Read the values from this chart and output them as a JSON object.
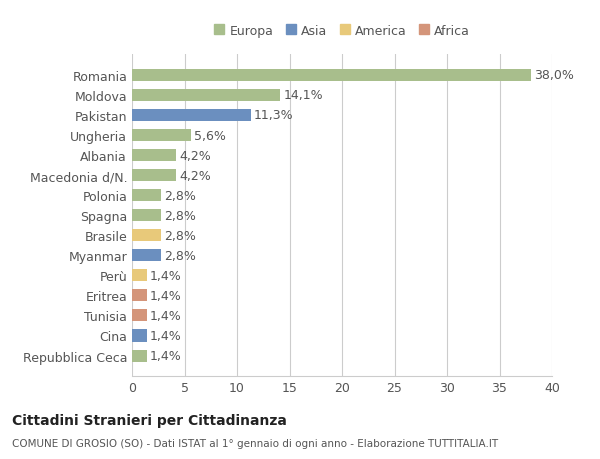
{
  "categories": [
    "Romania",
    "Moldova",
    "Pakistan",
    "Ungheria",
    "Albania",
    "Macedonia d/N.",
    "Polonia",
    "Spagna",
    "Brasile",
    "Myanmar",
    "Perù",
    "Eritrea",
    "Tunisia",
    "Cina",
    "Repubblica Ceca"
  ],
  "values": [
    38.0,
    14.1,
    11.3,
    5.6,
    4.2,
    4.2,
    2.8,
    2.8,
    2.8,
    2.8,
    1.4,
    1.4,
    1.4,
    1.4,
    1.4
  ],
  "labels": [
    "38,0%",
    "14,1%",
    "11,3%",
    "5,6%",
    "4,2%",
    "4,2%",
    "2,8%",
    "2,8%",
    "2,8%",
    "2,8%",
    "1,4%",
    "1,4%",
    "1,4%",
    "1,4%",
    "1,4%"
  ],
  "colors": [
    "#a8be8c",
    "#a8be8c",
    "#6b8fbf",
    "#a8be8c",
    "#a8be8c",
    "#a8be8c",
    "#a8be8c",
    "#a8be8c",
    "#e8c97a",
    "#6b8fbf",
    "#e8c97a",
    "#d4957a",
    "#d4957a",
    "#6b8fbf",
    "#a8be8c"
  ],
  "legend_labels": [
    "Europa",
    "Asia",
    "America",
    "Africa"
  ],
  "legend_colors": [
    "#a8be8c",
    "#6b8fbf",
    "#e8c97a",
    "#d4957a"
  ],
  "title": "Cittadini Stranieri per Cittadinanza",
  "subtitle": "COMUNE DI GROSIO (SO) - Dati ISTAT al 1° gennaio di ogni anno - Elaborazione TUTTITALIA.IT",
  "xlim": [
    0,
    40
  ],
  "xticks": [
    0,
    5,
    10,
    15,
    20,
    25,
    30,
    35,
    40
  ],
  "bg_color": "#ffffff",
  "grid_color": "#cccccc",
  "bar_height": 0.6,
  "label_fontsize": 9,
  "tick_fontsize": 9
}
